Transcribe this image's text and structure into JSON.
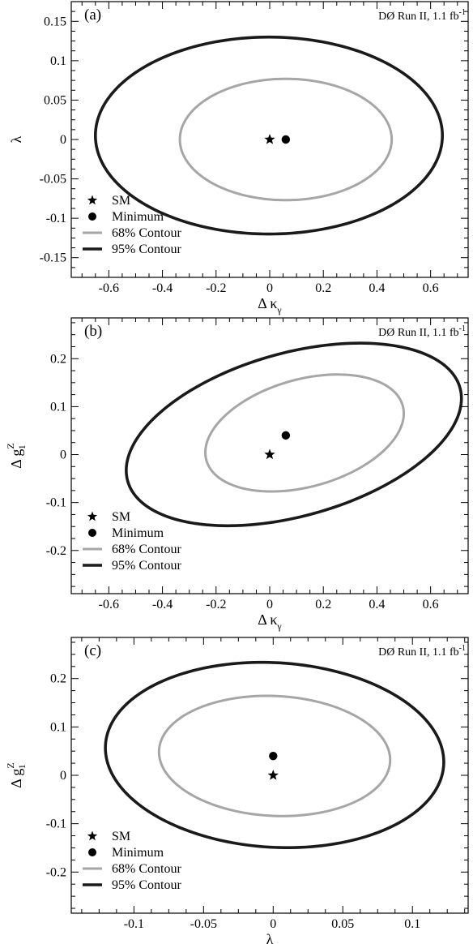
{
  "chart_data": [
    {
      "type": "scatter",
      "panel_label": "(a)",
      "run_label": "DØ Run II, 1.1 fb",
      "run_label_sup": "-1",
      "xlabel": "Δ κ",
      "xlabel_sub": "γ",
      "xlabel_sup": "",
      "ylabel": "λ",
      "ylabel_sub": "",
      "ylabel_sup": "",
      "xlim": [
        -0.74,
        0.74
      ],
      "ylim": [
        -0.175,
        0.175
      ],
      "xticks": [
        -0.6,
        -0.4,
        -0.2,
        0,
        0.2,
        0.4,
        0.6
      ],
      "xtick_labels": [
        "-0.6",
        "-0.4",
        "-0.2",
        "0",
        "0.2",
        "0.4",
        "0.6"
      ],
      "yticks": [
        -0.15,
        -0.1,
        -0.05,
        0,
        0.05,
        0.1,
        0.15
      ],
      "ytick_labels": [
        "-0.15",
        "-0.1",
        "-0.05",
        "0",
        "0.05",
        "0.1",
        "0.15"
      ],
      "sm": {
        "x": 0,
        "y": 0
      },
      "minimum": {
        "x": 0.06,
        "y": 0
      },
      "contours": [
        {
          "level": "68% Contour",
          "cx": 0.06,
          "cy": 0,
          "rx": 0.395,
          "ry": 0.077,
          "tilt_dydx": 0
        },
        {
          "level": "95% Contour",
          "cx": -0.003,
          "cy": 0.005,
          "rx": 0.647,
          "ry": 0.125,
          "tilt_dydx": 0
        }
      ],
      "legend": [
        "SM",
        "Minimum",
        "68% Contour",
        "95% Contour"
      ],
      "grid": false,
      "legend_position": "bottom-left"
    },
    {
      "type": "scatter",
      "panel_label": "(b)",
      "run_label": "DØ Run II, 1.1 fb",
      "run_label_sup": "-1",
      "xlabel": "Δ κ",
      "xlabel_sub": "γ",
      "xlabel_sup": "",
      "ylabel": "Δ g",
      "ylabel_sub": "1",
      "ylabel_sup": "Z",
      "xlim": [
        -0.74,
        0.74
      ],
      "ylim": [
        -0.29,
        0.285
      ],
      "xticks": [
        -0.6,
        -0.4,
        -0.2,
        0,
        0.2,
        0.4,
        0.6
      ],
      "xtick_labels": [
        "-0.6",
        "-0.4",
        "-0.2",
        "0",
        "0.2",
        "0.4",
        "0.6"
      ],
      "yticks": [
        -0.2,
        -0.1,
        0,
        0.1,
        0.2
      ],
      "ytick_labels": [
        "-0.2",
        "-0.1",
        "0",
        "0.1",
        "0.2"
      ],
      "sm": {
        "x": 0,
        "y": 0
      },
      "minimum": {
        "x": 0.06,
        "y": 0.04
      },
      "contours": [
        {
          "level": "68% Contour",
          "cx": 0.13,
          "cy": 0.045,
          "rx": 0.37,
          "ry": 0.115,
          "tilt_dydx": 0.11
        },
        {
          "level": "95% Contour",
          "cx": 0.09,
          "cy": 0.042,
          "rx": 0.625,
          "ry": 0.175,
          "tilt_dydx": 0.12
        }
      ],
      "legend": [
        "SM",
        "Minimum",
        "68% Contour",
        "95% Contour"
      ],
      "grid": false,
      "legend_position": "bottom-left"
    },
    {
      "type": "scatter",
      "panel_label": "(c)",
      "run_label": "DØ Run II, 1.1 fb",
      "run_label_sup": "-1",
      "xlabel": "λ",
      "xlabel_sub": "",
      "xlabel_sup": "",
      "ylabel": "Δ g",
      "ylabel_sub": "1",
      "ylabel_sup": "Z",
      "xlim": [
        -0.145,
        0.14
      ],
      "ylim": [
        -0.285,
        0.285
      ],
      "xticks": [
        -0.1,
        -0.05,
        0,
        0.05,
        0.1
      ],
      "xtick_labels": [
        "-0.1",
        "-0.05",
        "0",
        "0.05",
        "0.1"
      ],
      "yticks": [
        -0.2,
        -0.1,
        0,
        0.1,
        0.2
      ],
      "ytick_labels": [
        "-0.2",
        "-0.1",
        "0",
        "0.1",
        "0.2"
      ],
      "sm": {
        "x": 0,
        "y": 0
      },
      "minimum": {
        "x": 0,
        "y": 0.04
      },
      "contours": [
        {
          "level": "68% Contour",
          "cx": 0.001,
          "cy": 0.04,
          "rx": 0.083,
          "ry": 0.124,
          "tilt_dydx": -0.1
        },
        {
          "level": "95% Contour",
          "cx": 0.001,
          "cy": 0.042,
          "rx": 0.1215,
          "ry": 0.191,
          "tilt_dydx": -0.12
        }
      ],
      "legend": [
        "SM",
        "Minimum",
        "68% Contour",
        "95% Contour"
      ],
      "grid": false,
      "legend_position": "bottom-left"
    }
  ],
  "style": {
    "contour_68_color": "#a6a6a6",
    "contour_95_color": "#1a1a1a",
    "marker_color": "#000000"
  }
}
